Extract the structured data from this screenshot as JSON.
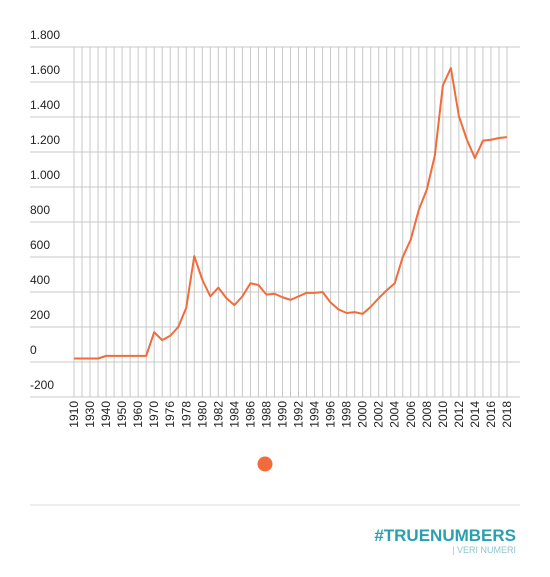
{
  "chart_data": {
    "type": "line",
    "categories": [
      "1910",
      null,
      "1930",
      null,
      "1940",
      null,
      "1950",
      null,
      "1960",
      null,
      "1970",
      null,
      "1976",
      null,
      "1978",
      null,
      "1980",
      null,
      "1982",
      null,
      "1984",
      null,
      "1986",
      null,
      "1988",
      null,
      "1990",
      null,
      "1992",
      null,
      "1994",
      null,
      "1996",
      null,
      "1998",
      null,
      "2000",
      null,
      "2002",
      null,
      "2004",
      null,
      "2006",
      null,
      "2008",
      null,
      "2010",
      null,
      "2012",
      null,
      "2014",
      null,
      "2016",
      null,
      "2018"
    ],
    "series": [
      {
        "color": "#f26b3a",
        "values": [
          20,
          20,
          20,
          20,
          35,
          35,
          35,
          35,
          35,
          35,
          170,
          125,
          150,
          200,
          310,
          605,
          470,
          375,
          425,
          365,
          325,
          375,
          450,
          440,
          385,
          390,
          370,
          355,
          375,
          395,
          395,
          400,
          340,
          300,
          280,
          285,
          275,
          315,
          365,
          410,
          450,
          600,
          700,
          870,
          985,
          1180,
          1580,
          1680,
          1405,
          1270,
          1165,
          1265,
          1270,
          1280,
          1285
        ]
      }
    ],
    "ylim": [
      -200,
      1800
    ],
    "yticks": [
      -200,
      0,
      200,
      400,
      600,
      800,
      {
        "value": 1000,
        "label": "1.000"
      },
      {
        "value": 1200,
        "label": "1.200"
      },
      {
        "value": 1400,
        "label": "1.400"
      },
      {
        "value": 1600,
        "label": "1.600"
      },
      {
        "value": 1800,
        "label": "1.800"
      }
    ],
    "grid": true,
    "brand": {
      "name": "#TRUENUMBERS",
      "tagline": "| VERI NUMERI"
    }
  }
}
